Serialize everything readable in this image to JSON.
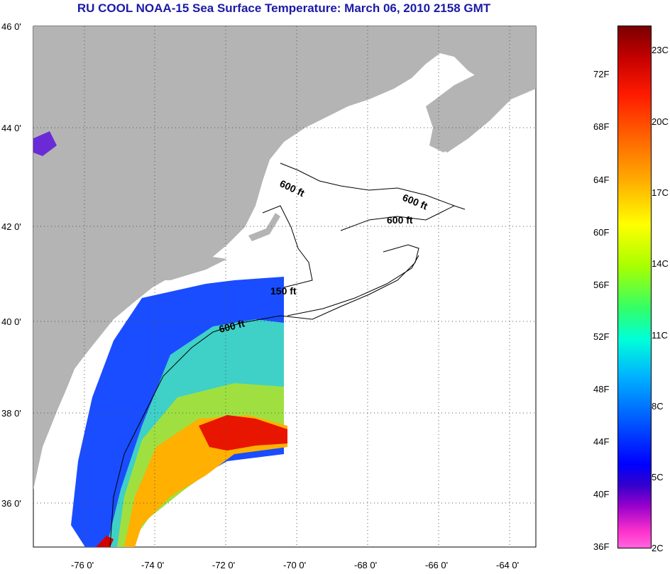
{
  "title": "RU COOL  NOAA-15  Sea Surface Temperature:  March 06, 2010 2158 GMT",
  "lat_labels": [
    "46 0'",
    "44 0'",
    "42 0'",
    "40 0'",
    "38 0'",
    "36 0'"
  ],
  "lon_labels": [
    "-76 0'",
    "-74 0'",
    "-72 0'",
    "-70 0'",
    "-68 0'",
    "-66 0'",
    "-64 0'"
  ],
  "contour_labels": [
    "600 ft",
    "600 ft",
    "600 ft",
    "150 ft",
    "600 ft"
  ],
  "colorbar": {
    "fahrenheit": [
      "72F",
      "68F",
      "64F",
      "60F",
      "56F",
      "52F",
      "48F",
      "44F",
      "40F",
      "36F"
    ],
    "celsius": [
      "23C",
      "20C",
      "17C",
      "14C",
      "11C",
      "8C",
      "5C",
      "2C"
    ]
  },
  "colors": {
    "land": "#b4b4b4",
    "title": "#1a1aa6",
    "grid": "#555555"
  }
}
